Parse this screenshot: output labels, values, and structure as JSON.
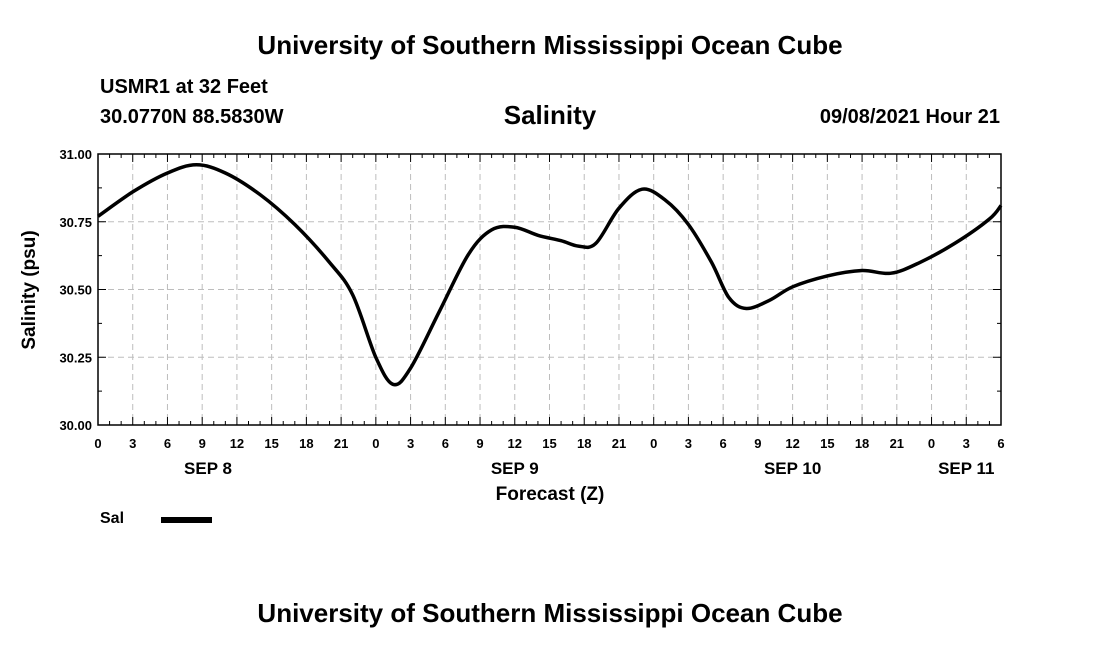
{
  "header": {
    "title": "University of Southern Mississippi Ocean Cube",
    "station": "USMR1 at 32 Feet",
    "coords": "30.0770N  88.5830W",
    "datetime": "09/08/2021 Hour 21"
  },
  "footer": {
    "title": "University of Southern Mississippi Ocean Cube"
  },
  "legend": {
    "label": "Sal",
    "color": "#000000"
  },
  "chart_data": {
    "type": "line",
    "title": "Salinity",
    "xlabel": "Forecast (Z)",
    "ylabel": "Salinity (psu)",
    "xlim": [
      0,
      78
    ],
    "ylim": [
      30.0,
      31.0
    ],
    "grid": true,
    "yticks": [
      30.0,
      30.25,
      30.5,
      30.75,
      31.0
    ],
    "ytick_labels": [
      "30.00",
      "30.25",
      "30.50",
      "30.75",
      "31.00"
    ],
    "xticks": [
      0,
      3,
      6,
      9,
      12,
      15,
      18,
      21,
      24,
      27,
      30,
      33,
      36,
      39,
      42,
      45,
      48,
      51,
      54,
      57,
      60,
      63,
      66,
      69,
      72,
      75,
      78
    ],
    "xtick_labels": [
      "0",
      "3",
      "6",
      "9",
      "12",
      "15",
      "18",
      "21",
      "0",
      "3",
      "6",
      "9",
      "12",
      "15",
      "18",
      "21",
      "0",
      "3",
      "6",
      "9",
      "12",
      "15",
      "18",
      "21",
      "0",
      "3",
      "6"
    ],
    "date_labels": [
      {
        "x": 9.5,
        "label": "SEP 8"
      },
      {
        "x": 36,
        "label": "SEP 9"
      },
      {
        "x": 60,
        "label": "SEP 10"
      },
      {
        "x": 75,
        "label": "SEP 11"
      }
    ],
    "x_unit": "hours from SEP 8 00Z",
    "series": [
      {
        "name": "Sal",
        "x": [
          0,
          3,
          6,
          8.5,
          11,
          14,
          17,
          20,
          22,
          24,
          25.5,
          27,
          29.5,
          32,
          34,
          36,
          38,
          40,
          41.5,
          43,
          45,
          47,
          49,
          51,
          53,
          54.5,
          56,
          58,
          60,
          63,
          66,
          68.5,
          71,
          74,
          77,
          78
        ],
        "values": [
          30.77,
          30.86,
          30.93,
          30.96,
          30.93,
          30.85,
          30.74,
          30.6,
          30.48,
          30.25,
          30.15,
          30.21,
          30.42,
          30.63,
          30.72,
          30.73,
          30.7,
          30.68,
          30.66,
          30.67,
          30.8,
          30.87,
          30.83,
          30.74,
          30.6,
          30.47,
          30.43,
          30.46,
          30.51,
          30.55,
          30.57,
          30.56,
          30.6,
          30.67,
          30.76,
          30.81
        ]
      }
    ]
  }
}
